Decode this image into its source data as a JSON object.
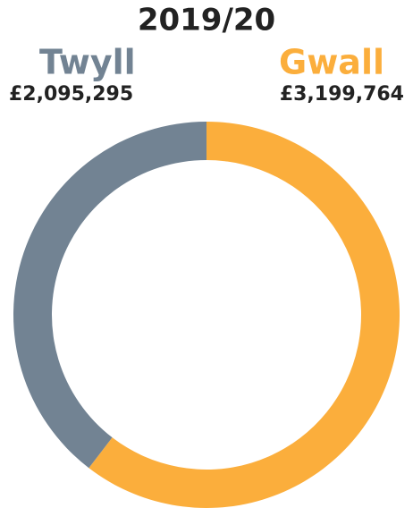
{
  "chart_data": {
    "type": "donut",
    "title": "2019/20",
    "categories": [
      "Gwall",
      "Twyll"
    ],
    "values": [
      3199764,
      2095295
    ],
    "value_labels": [
      "£3,199,764",
      "£2,095,295"
    ],
    "colors": [
      "#fbae3c",
      "#728393"
    ]
  }
}
